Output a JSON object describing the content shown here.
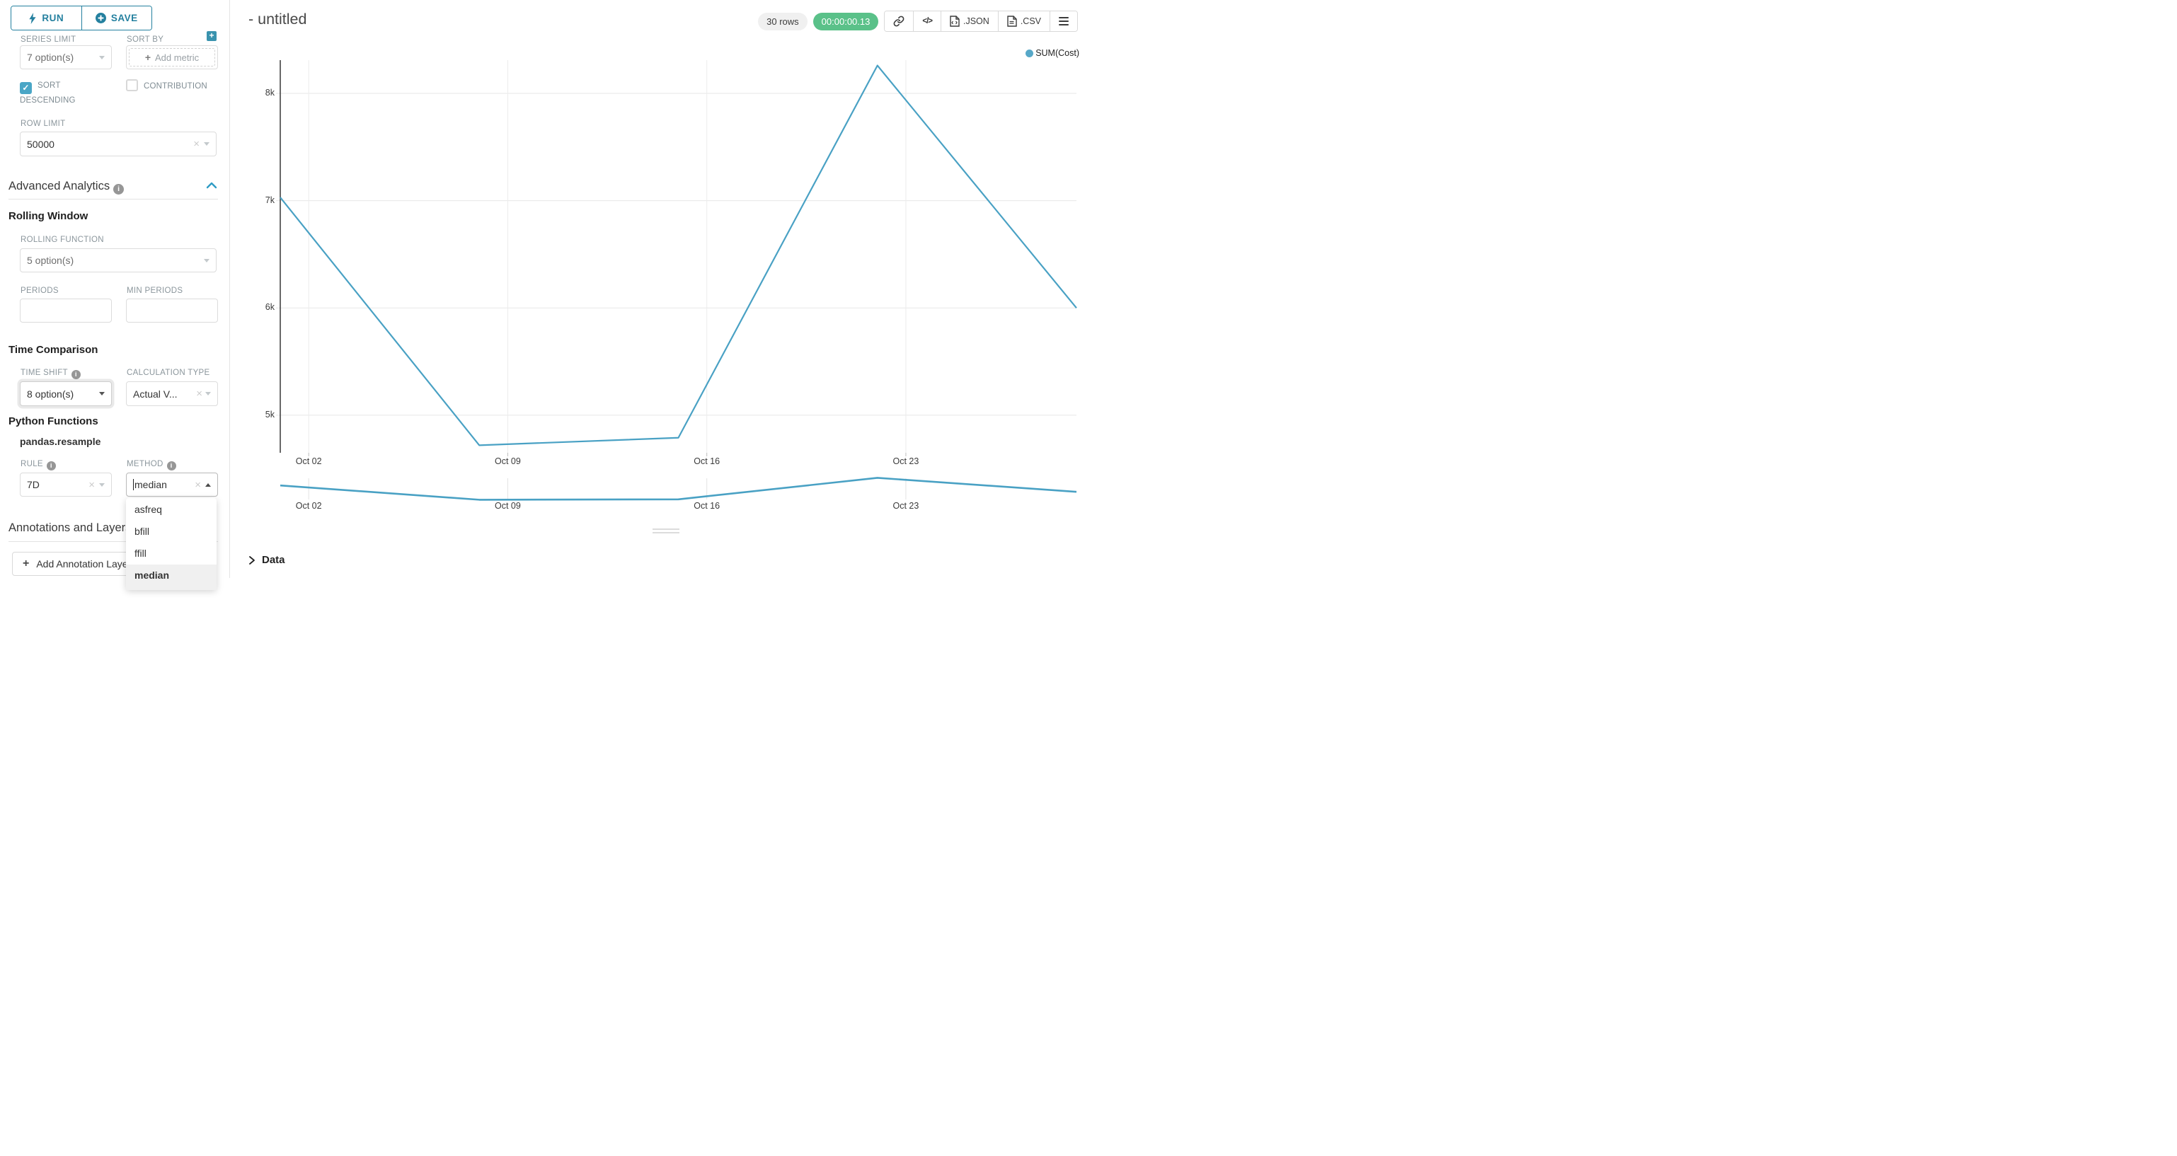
{
  "icons": {
    "clear": "×",
    "check": "✓",
    "plus": "+",
    "code": "</>"
  },
  "sidebar": {
    "run": "RUN",
    "save": "SAVE",
    "series_limit_label": "SERIES LIMIT",
    "series_limit_value": "7 option(s)",
    "sort_by_label": "SORT BY",
    "add_metric": "Add metric",
    "sort_descending_label": "SORT DESCENDING",
    "contribution_label": "CONTRIBUTION",
    "row_limit_label": "ROW LIMIT",
    "row_limit_value": "50000",
    "advanced_analytics_title": "Advanced Analytics",
    "rolling_window_title": "Rolling Window",
    "rolling_function_label": "ROLLING FUNCTION",
    "rolling_function_value": "5 option(s)",
    "periods_label": "PERIODS",
    "min_periods_label": "MIN PERIODS",
    "time_comparison_title": "Time Comparison",
    "time_shift_label": "TIME SHIFT",
    "time_shift_value": "8 option(s)",
    "calculation_type_label": "CALCULATION TYPE",
    "calculation_type_value": "Actual V...",
    "python_functions_title": "Python Functions",
    "pandas_resample_label": "pandas.resample",
    "rule_label": "RULE",
    "rule_value": "7D",
    "method_label": "METHOD",
    "method_value": "median",
    "method_options": [
      "asfreq",
      "bfill",
      "ffill",
      "median"
    ],
    "method_selected": "median",
    "annotations_title": "Annotations and Layers",
    "add_annotation_label": "Add Annotation Layer"
  },
  "header": {
    "title": "- untitled",
    "rows_badge": "30 rows",
    "timer_badge": "00:00:00.13",
    "json_label": ".JSON",
    "csv_label": ".CSV"
  },
  "data_panel": {
    "title": "Data"
  },
  "colors": {
    "accent_teal": "#24809f",
    "checkbox_teal": "#4aa6c6",
    "badge_green": "#5ac189",
    "line": "#49a1c4",
    "legend_dot": "#57a8c8",
    "gridline": "#e7e7e7",
    "axis": "#424242"
  },
  "chart_data": {
    "type": "line",
    "title": "- untitled",
    "legend_label": "SUM(Cost)",
    "legend_position": "top-right",
    "grid": true,
    "x_is_time": true,
    "x_days": [
      0,
      7,
      14,
      21,
      28
    ],
    "x_dates": [
      "Oct 01",
      "Oct 08",
      "Oct 15",
      "Oct 22",
      "Oct 29"
    ],
    "series": [
      {
        "name": "SUM(Cost)",
        "color": "#49a1c4",
        "values": [
          7030,
          4720,
          4790,
          8260,
          6000
        ]
      }
    ],
    "x_ticks": [
      {
        "day": 1,
        "label": "Oct 02"
      },
      {
        "day": 8,
        "label": "Oct 09"
      },
      {
        "day": 15,
        "label": "Oct 16"
      },
      {
        "day": 22,
        "label": "Oct 23"
      }
    ],
    "y_ticks": [
      {
        "value": 5000,
        "label": "5k"
      },
      {
        "value": 6000,
        "label": "6k"
      },
      {
        "value": 7000,
        "label": "7k"
      },
      {
        "value": 8000,
        "label": "8k"
      }
    ],
    "x_range_days": [
      0,
      28
    ],
    "y_range": [
      4650,
      8310
    ],
    "ylabel": "",
    "xlabel": "",
    "mini_context_chart": true
  }
}
